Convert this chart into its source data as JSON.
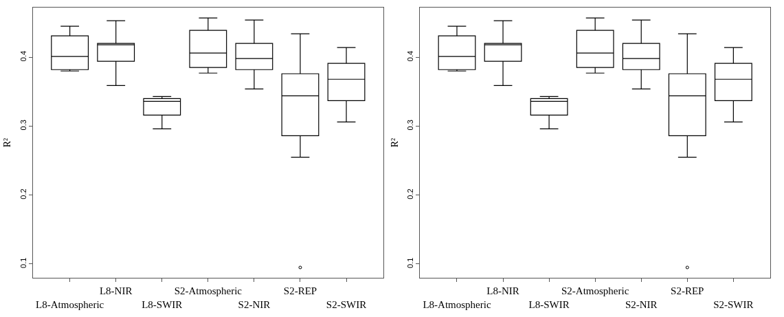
{
  "chart_data": [
    {
      "type": "box",
      "ylabel": "R²",
      "categories": [
        "L8-Atmospheric",
        "L8-NIR",
        "L8-SWIR",
        "S2-Atmospheric",
        "S2-NIR",
        "S2-REP",
        "S2-SWIR"
      ],
      "boxes": [
        {
          "low": 0.38,
          "q1": 0.382,
          "median": 0.401,
          "q3": 0.431,
          "high": 0.445
        },
        {
          "low": 0.359,
          "q1": 0.394,
          "median": 0.418,
          "q3": 0.42,
          "high": 0.453
        },
        {
          "low": 0.296,
          "q1": 0.316,
          "median": 0.336,
          "q3": 0.34,
          "high": 0.343
        },
        {
          "low": 0.377,
          "q1": 0.385,
          "median": 0.406,
          "q3": 0.439,
          "high": 0.457
        },
        {
          "low": 0.354,
          "q1": 0.382,
          "median": 0.398,
          "q3": 0.42,
          "high": 0.454
        },
        {
          "low": 0.255,
          "q1": 0.286,
          "median": 0.344,
          "q3": 0.376,
          "high": 0.434,
          "outliers": [
            0.095
          ]
        },
        {
          "low": 0.306,
          "q1": 0.337,
          "median": 0.368,
          "q3": 0.391,
          "high": 0.414
        }
      ],
      "ylim": [
        0.08,
        0.472
      ],
      "yticks": [
        0.1,
        0.2,
        0.3,
        0.4
      ]
    },
    {
      "type": "box",
      "ylabel": "R²",
      "categories": [
        "L8-Atmospheric",
        "L8-NIR",
        "L8-SWIR",
        "S2-Atmospheric",
        "S2-NIR",
        "S2-REP",
        "S2-SWIR"
      ],
      "boxes": [
        {
          "low": 0.38,
          "q1": 0.382,
          "median": 0.401,
          "q3": 0.431,
          "high": 0.445
        },
        {
          "low": 0.359,
          "q1": 0.394,
          "median": 0.418,
          "q3": 0.42,
          "high": 0.453
        },
        {
          "low": 0.296,
          "q1": 0.316,
          "median": 0.336,
          "q3": 0.34,
          "high": 0.343
        },
        {
          "low": 0.377,
          "q1": 0.385,
          "median": 0.406,
          "q3": 0.439,
          "high": 0.457
        },
        {
          "low": 0.354,
          "q1": 0.382,
          "median": 0.398,
          "q3": 0.42,
          "high": 0.454
        },
        {
          "low": 0.255,
          "q1": 0.286,
          "median": 0.344,
          "q3": 0.376,
          "high": 0.434,
          "outliers": [
            0.095
          ]
        },
        {
          "low": 0.306,
          "q1": 0.337,
          "median": 0.368,
          "q3": 0.391,
          "high": 0.414
        }
      ],
      "ylim": [
        0.08,
        0.472
      ],
      "yticks": [
        0.1,
        0.2,
        0.3,
        0.4
      ]
    }
  ]
}
